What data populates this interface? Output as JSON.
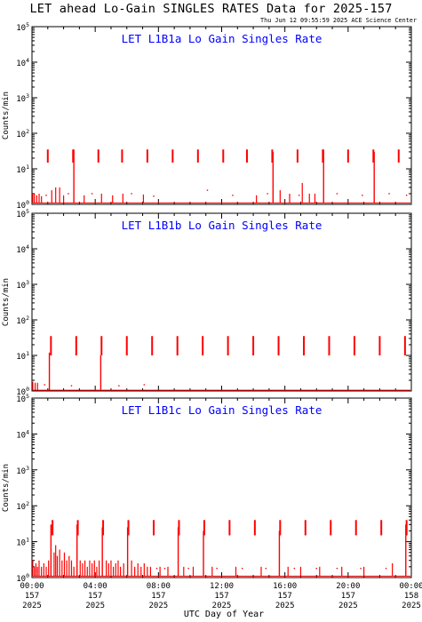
{
  "header": {
    "title": "LET ahead Lo-Gain SINGLES RATES Data for 2025-157",
    "timestamp": "Thu Jun 12 09:55:59 2025 ACE Science Center"
  },
  "colors": {
    "data": "#ff0000",
    "panel_title": "#0000ff",
    "axes": "#000000"
  },
  "x_axis": {
    "label": "UTC Day of Year",
    "ticks": [
      {
        "time": "00:00",
        "doy": "157",
        "year": "2025"
      },
      {
        "time": "04:00",
        "doy": "157",
        "year": "2025"
      },
      {
        "time": "08:00",
        "doy": "157",
        "year": "2025"
      },
      {
        "time": "12:00",
        "doy": "157",
        "year": "2025"
      },
      {
        "time": "16:00",
        "doy": "157",
        "year": "2025"
      },
      {
        "time": "20:00",
        "doy": "157",
        "year": "2025"
      },
      {
        "time": "00:00",
        "doy": "158",
        "year": "2025"
      }
    ]
  },
  "chart_data": [
    {
      "type": "line",
      "title": "LET L1B1a Lo Gain Singles Rate",
      "ylabel": "Counts/min",
      "yscale": "log",
      "ylim": [
        1,
        100000
      ],
      "xlim_hours": [
        0,
        24
      ],
      "y_ticks": [
        "10",
        "10",
        "10",
        "10",
        "10",
        "10"
      ],
      "y_exps": [
        "0",
        "1",
        "2",
        "3",
        "4",
        "5"
      ],
      "baseline": 1.1,
      "periodic_spikes": {
        "hours": [
          1.0,
          2.6,
          4.2,
          5.7,
          7.3,
          8.9,
          10.5,
          12.1,
          13.6,
          15.2,
          16.8,
          18.4,
          20.0,
          21.6,
          23.2
        ],
        "lo": 15,
        "hi": 35
      },
      "tall_spikes": [
        {
          "h": 2.65,
          "v": 35
        },
        {
          "h": 15.25,
          "v": 30
        },
        {
          "h": 18.45,
          "v": 35
        },
        {
          "h": 21.65,
          "v": 30
        }
      ],
      "noise": [
        {
          "h": 0.05,
          "v": 2
        },
        {
          "h": 0.15,
          "v": 2
        },
        {
          "h": 0.3,
          "v": 1.8
        },
        {
          "h": 0.45,
          "v": 2
        },
        {
          "h": 0.6,
          "v": 1.7
        },
        {
          "h": 1.25,
          "v": 2.5
        },
        {
          "h": 1.5,
          "v": 3
        },
        {
          "h": 1.75,
          "v": 3
        },
        {
          "h": 2.0,
          "v": 1.8
        },
        {
          "h": 3.3,
          "v": 1.8
        },
        {
          "h": 4.4,
          "v": 2
        },
        {
          "h": 5.1,
          "v": 1.8
        },
        {
          "h": 5.75,
          "v": 2
        },
        {
          "h": 7.05,
          "v": 1.9
        },
        {
          "h": 14.2,
          "v": 1.8
        },
        {
          "h": 15.7,
          "v": 2.5
        },
        {
          "h": 16.3,
          "v": 2
        },
        {
          "h": 17.1,
          "v": 4
        },
        {
          "h": 17.55,
          "v": 2
        },
        {
          "h": 17.9,
          "v": 2
        }
      ],
      "dots": [
        {
          "h": 0.9,
          "v": 1.8
        },
        {
          "h": 2.3,
          "v": 2
        },
        {
          "h": 3.8,
          "v": 2
        },
        {
          "h": 6.3,
          "v": 2
        },
        {
          "h": 7.7,
          "v": 1.7
        },
        {
          "h": 11.1,
          "v": 2.5
        },
        {
          "h": 12.7,
          "v": 1.8
        },
        {
          "h": 14.9,
          "v": 2
        },
        {
          "h": 16.9,
          "v": 1.8
        },
        {
          "h": 19.3,
          "v": 2
        },
        {
          "h": 20.9,
          "v": 1.8
        },
        {
          "h": 22.6,
          "v": 2
        },
        {
          "h": 23.7,
          "v": 1.8
        }
      ]
    },
    {
      "type": "line",
      "title": "LET L1B1b Lo Gain Singles Rate",
      "ylabel": "Counts/min",
      "yscale": "log",
      "ylim": [
        1,
        100000
      ],
      "xlim_hours": [
        0,
        24
      ],
      "y_ticks": [
        "10",
        "10",
        "10",
        "10",
        "10",
        "10"
      ],
      "y_exps": [
        "0",
        "1",
        "2",
        "3",
        "4",
        "5"
      ],
      "baseline": 1.05,
      "periodic_spikes": {
        "hours": [
          1.2,
          2.8,
          4.4,
          6.0,
          7.6,
          9.2,
          10.8,
          12.4,
          14.0,
          15.6,
          17.2,
          18.8,
          20.4,
          22.0,
          23.6
        ],
        "lo": 10,
        "hi": 35
      },
      "tall_spikes": [
        {
          "h": 1.1,
          "v": 12
        },
        {
          "h": 4.35,
          "v": 10
        }
      ],
      "noise": [
        {
          "h": 0.05,
          "v": 1.8
        },
        {
          "h": 0.2,
          "v": 1.7
        },
        {
          "h": 0.35,
          "v": 1.7
        }
      ],
      "dots": [
        {
          "h": 0.8,
          "v": 1.5
        },
        {
          "h": 2.5,
          "v": 1.4
        },
        {
          "h": 5.5,
          "v": 1.4
        },
        {
          "h": 7.1,
          "v": 1.5
        }
      ]
    },
    {
      "type": "line",
      "title": "LET L1B1c Lo Gain Singles Rate",
      "ylabel": "Counts/min",
      "yscale": "log",
      "ylim": [
        1,
        100000
      ],
      "xlim_hours": [
        0,
        24
      ],
      "y_ticks": [
        "10",
        "10",
        "10",
        "10",
        "10",
        "10"
      ],
      "y_exps": [
        "0",
        "1",
        "2",
        "3",
        "4",
        "5"
      ],
      "baseline": 1.1,
      "periodic_spikes": {
        "hours": [
          1.3,
          2.9,
          4.5,
          6.1,
          7.7,
          9.3,
          10.9,
          12.5,
          14.1,
          15.7,
          17.3,
          18.9,
          20.5,
          22.1,
          23.7
        ],
        "lo": 15,
        "hi": 40
      },
      "tall_spikes": [
        {
          "h": 1.2,
          "v": 30
        },
        {
          "h": 2.85,
          "v": 30
        },
        {
          "h": 4.45,
          "v": 25
        },
        {
          "h": 6.05,
          "v": 25
        },
        {
          "h": 9.25,
          "v": 25
        },
        {
          "h": 10.85,
          "v": 20
        },
        {
          "h": 15.65,
          "v": 20
        },
        {
          "h": 23.65,
          "v": 30
        }
      ],
      "noise": [
        {
          "h": 0.05,
          "v": 3
        },
        {
          "h": 0.15,
          "v": 2
        },
        {
          "h": 0.25,
          "v": 2.5
        },
        {
          "h": 0.35,
          "v": 2
        },
        {
          "h": 0.45,
          "v": 3
        },
        {
          "h": 0.6,
          "v": 2
        },
        {
          "h": 0.75,
          "v": 2.5
        },
        {
          "h": 0.9,
          "v": 2
        },
        {
          "h": 1.05,
          "v": 3
        },
        {
          "h": 1.4,
          "v": 5
        },
        {
          "h": 1.5,
          "v": 8
        },
        {
          "h": 1.6,
          "v": 4
        },
        {
          "h": 1.75,
          "v": 6
        },
        {
          "h": 1.9,
          "v": 3
        },
        {
          "h": 2.05,
          "v": 5
        },
        {
          "h": 2.2,
          "v": 3
        },
        {
          "h": 2.35,
          "v": 4
        },
        {
          "h": 2.5,
          "v": 3
        },
        {
          "h": 2.65,
          "v": 2
        },
        {
          "h": 3.05,
          "v": 3
        },
        {
          "h": 3.2,
          "v": 2.5
        },
        {
          "h": 3.35,
          "v": 3
        },
        {
          "h": 3.5,
          "v": 2
        },
        {
          "h": 3.65,
          "v": 3
        },
        {
          "h": 3.8,
          "v": 2.5
        },
        {
          "h": 3.95,
          "v": 3
        },
        {
          "h": 4.1,
          "v": 2
        },
        {
          "h": 4.25,
          "v": 3
        },
        {
          "h": 4.7,
          "v": 3
        },
        {
          "h": 4.85,
          "v": 2.5
        },
        {
          "h": 5.0,
          "v": 3
        },
        {
          "h": 5.15,
          "v": 2
        },
        {
          "h": 5.3,
          "v": 2.5
        },
        {
          "h": 5.45,
          "v": 3
        },
        {
          "h": 5.6,
          "v": 2
        },
        {
          "h": 5.8,
          "v": 2.5
        },
        {
          "h": 6.3,
          "v": 3
        },
        {
          "h": 6.5,
          "v": 2
        },
        {
          "h": 6.7,
          "v": 2.5
        },
        {
          "h": 6.9,
          "v": 2
        },
        {
          "h": 7.1,
          "v": 2.5
        },
        {
          "h": 7.3,
          "v": 2
        },
        {
          "h": 7.5,
          "v": 2
        },
        {
          "h": 8.1,
          "v": 2
        },
        {
          "h": 8.6,
          "v": 2
        },
        {
          "h": 9.6,
          "v": 2
        },
        {
          "h": 10.2,
          "v": 2
        },
        {
          "h": 11.4,
          "v": 2
        },
        {
          "h": 12.9,
          "v": 2
        },
        {
          "h": 14.5,
          "v": 2
        },
        {
          "h": 16.2,
          "v": 2
        },
        {
          "h": 17.0,
          "v": 2
        },
        {
          "h": 18.2,
          "v": 2
        },
        {
          "h": 19.6,
          "v": 2
        },
        {
          "h": 21.0,
          "v": 2
        },
        {
          "h": 22.8,
          "v": 2.5
        }
      ],
      "dots": [
        {
          "h": 7.9,
          "v": 1.8
        },
        {
          "h": 8.4,
          "v": 1.8
        },
        {
          "h": 9.9,
          "v": 1.8
        },
        {
          "h": 11.7,
          "v": 1.8
        },
        {
          "h": 13.3,
          "v": 1.8
        },
        {
          "h": 14.8,
          "v": 1.8
        },
        {
          "h": 16.6,
          "v": 1.8
        },
        {
          "h": 18.0,
          "v": 1.8
        },
        {
          "h": 19.3,
          "v": 1.8
        },
        {
          "h": 20.8,
          "v": 1.8
        },
        {
          "h": 22.4,
          "v": 1.8
        }
      ]
    }
  ]
}
